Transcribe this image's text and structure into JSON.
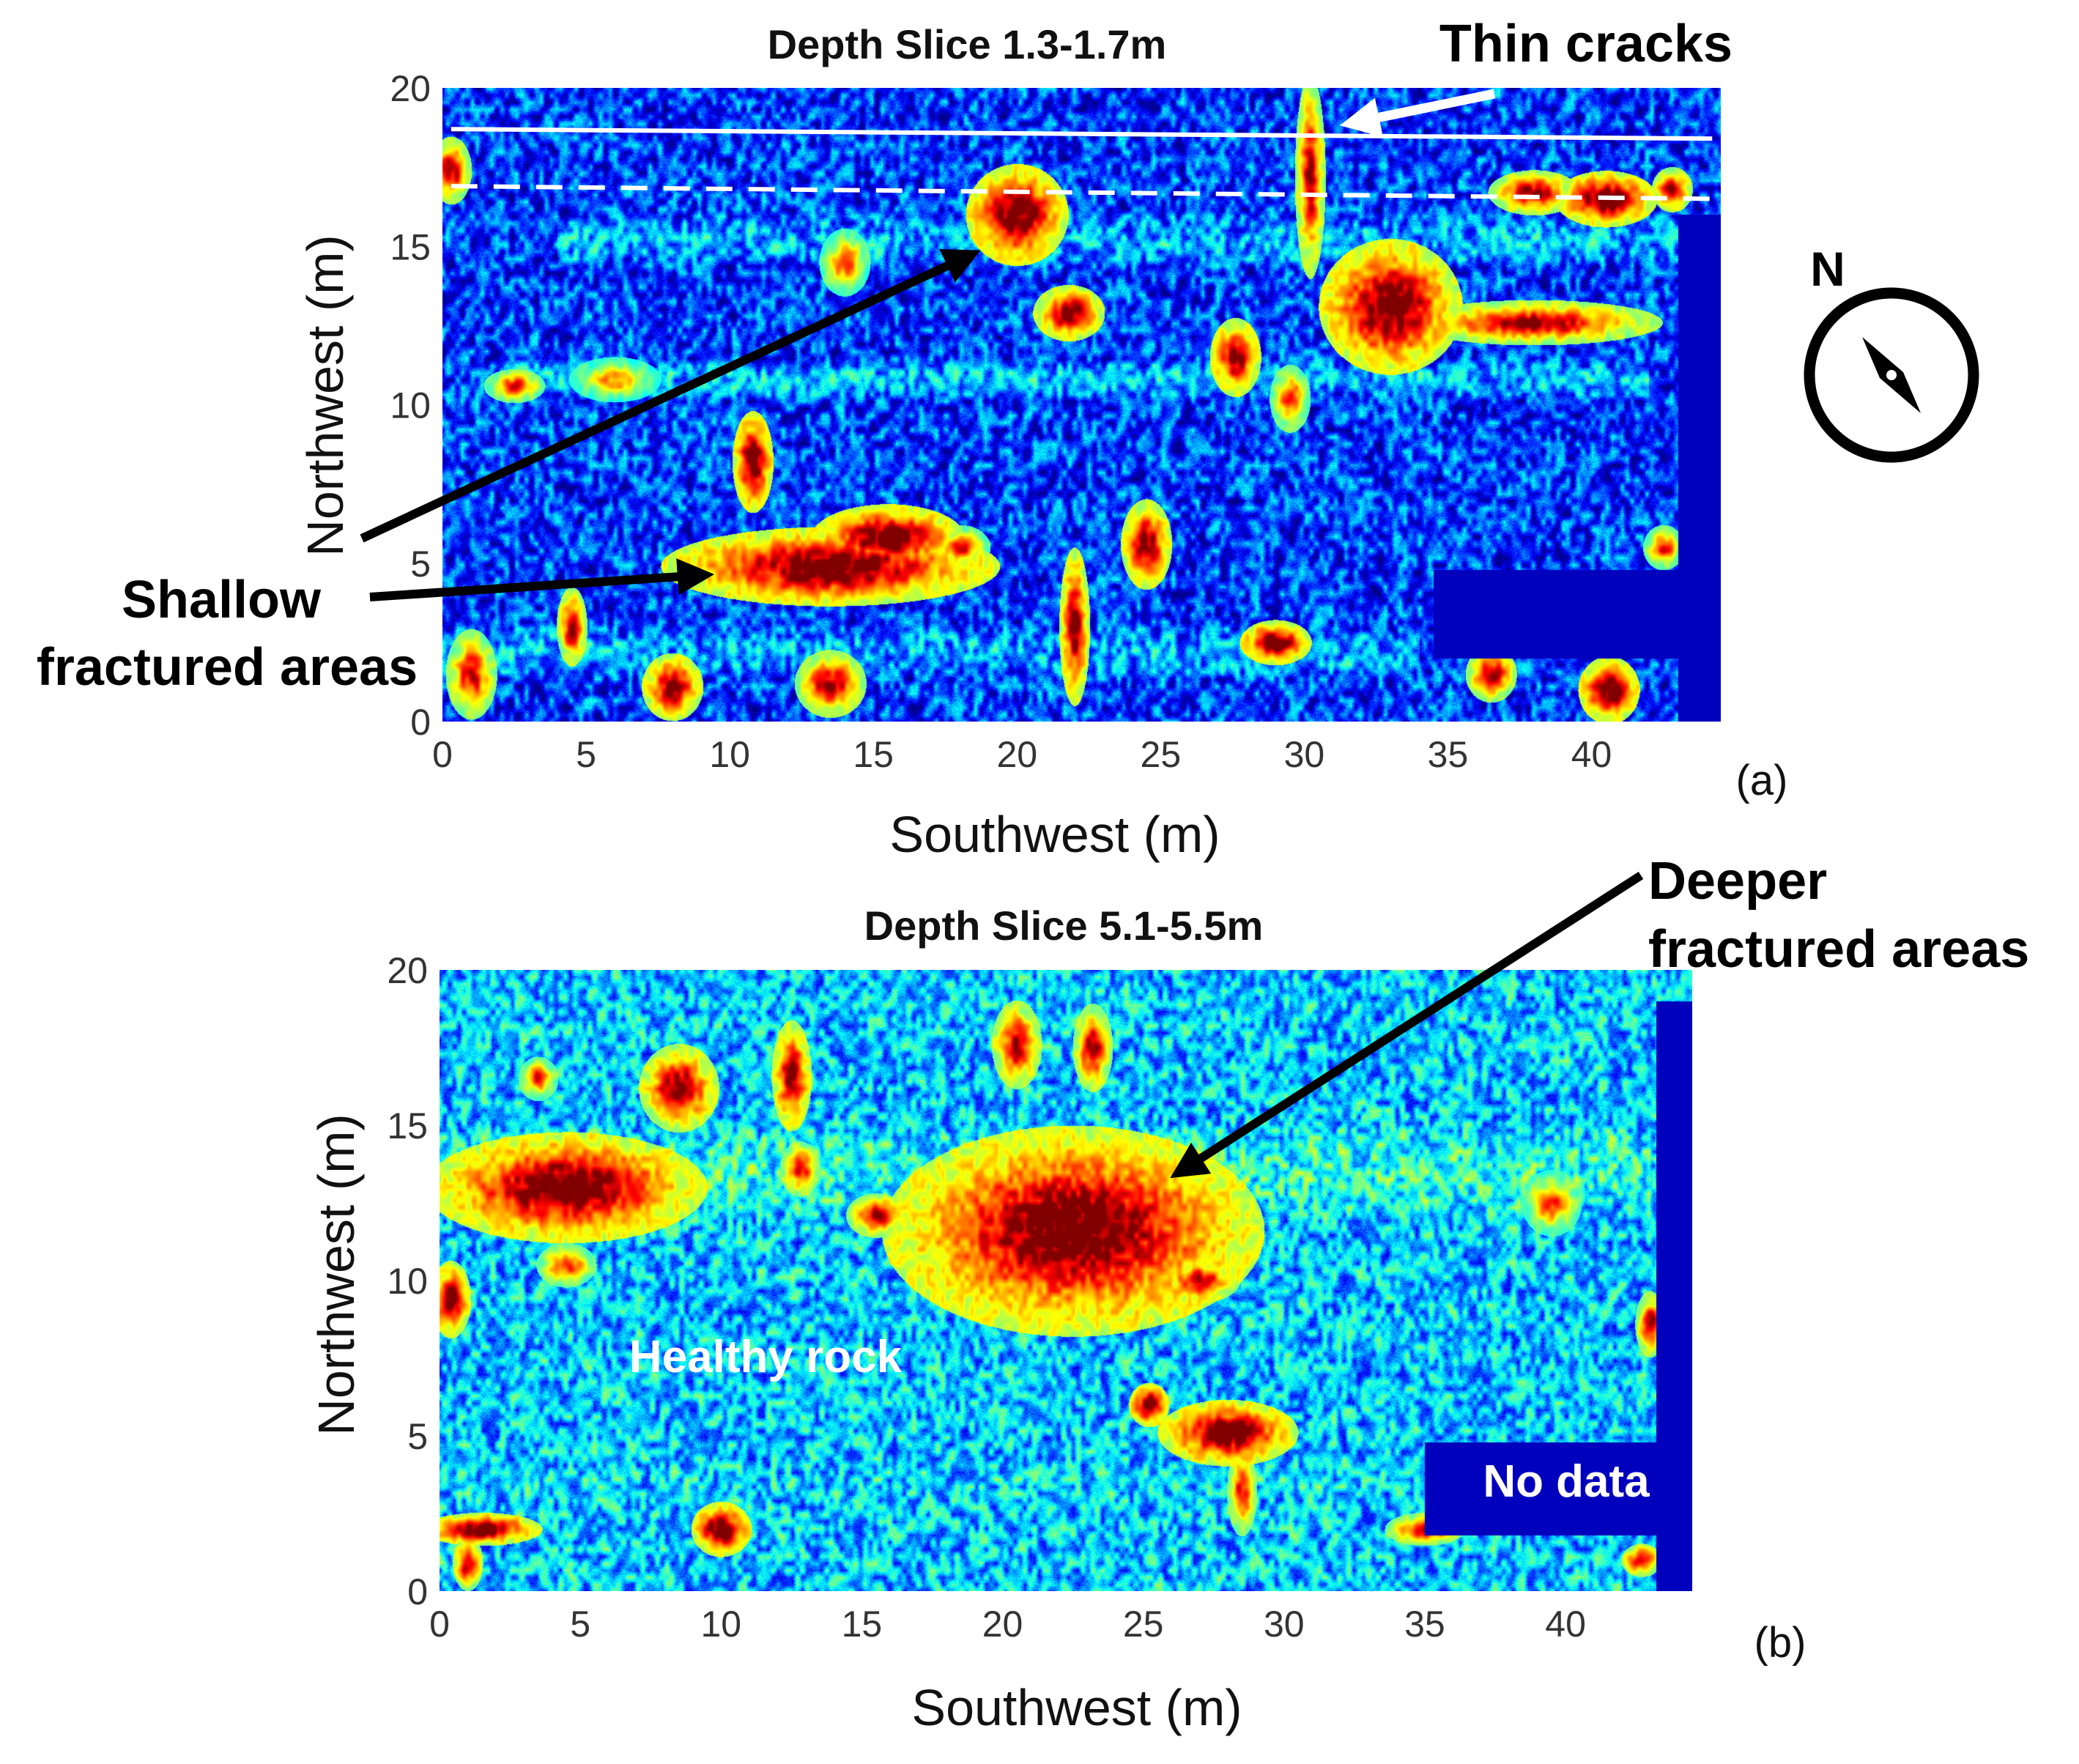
{
  "chart_data": [
    {
      "type": "heatmap",
      "panel_label": "(a)",
      "title": "Depth Slice 1.3-1.7m",
      "xlabel": "Southwest (m)",
      "ylabel": "Northwest (m)",
      "xlim": [
        0,
        44.5
      ],
      "ylim": [
        0,
        20
      ],
      "xticks": [
        "0",
        "5",
        "10",
        "15",
        "20",
        "25",
        "30",
        "35",
        "40"
      ],
      "yticks": [
        "0",
        "5",
        "10",
        "15",
        "20"
      ],
      "colormap": "jet",
      "colors": {
        "low": "#00008f",
        "mid": "#00b4ff",
        "high": "#ffff00",
        "max": "#800000"
      },
      "background_level": 0.18,
      "no_data_regions": [
        {
          "x0": 43.0,
          "x1": 44.5,
          "y0": 0,
          "y1": 16
        },
        {
          "x0": 34.5,
          "x1": 43.0,
          "y0": 2,
          "y1": 4.8
        }
      ],
      "bands": [
        {
          "y_center": 10.8,
          "y_width": 1.8,
          "x_start": 2,
          "x_end": 42,
          "level": 0.32
        },
        {
          "y_center": 15.2,
          "y_width": 2.5,
          "x_start": 4,
          "x_end": 43,
          "level": 0.3
        },
        {
          "y_center": 2.2,
          "y_width": 2.6,
          "x_start": 0,
          "x_end": 34,
          "level": 0.3
        }
      ],
      "hotspots": [
        {
          "x": 13.5,
          "y": 4.9,
          "rx": 3.3,
          "ry": 0.7,
          "value": 1.0
        },
        {
          "x": 15.5,
          "y": 5.8,
          "rx": 1.5,
          "ry": 0.6,
          "value": 1.0
        },
        {
          "x": 20.0,
          "y": 16.0,
          "rx": 1.0,
          "ry": 0.9,
          "value": 1.0
        },
        {
          "x": 33.0,
          "y": 13.1,
          "rx": 1.4,
          "ry": 1.2,
          "value": 1.0
        },
        {
          "x": 10.8,
          "y": 8.2,
          "rx": 0.4,
          "ry": 0.9,
          "value": 1.0
        },
        {
          "x": 21.8,
          "y": 12.9,
          "rx": 0.7,
          "ry": 0.5,
          "value": 0.95
        },
        {
          "x": 24.5,
          "y": 5.6,
          "rx": 0.5,
          "ry": 0.8,
          "value": 0.95
        },
        {
          "x": 22.0,
          "y": 3.0,
          "rx": 0.3,
          "ry": 1.4,
          "value": 0.95
        },
        {
          "x": 30.2,
          "y": 17.2,
          "rx": 0.3,
          "ry": 1.8,
          "value": 0.9
        },
        {
          "x": 40.5,
          "y": 16.5,
          "rx": 1.0,
          "ry": 0.5,
          "value": 1.0
        },
        {
          "x": 38.0,
          "y": 16.7,
          "rx": 0.9,
          "ry": 0.4,
          "value": 0.9
        },
        {
          "x": 38.0,
          "y": 12.6,
          "rx": 2.5,
          "ry": 0.4,
          "value": 0.9
        },
        {
          "x": 40.6,
          "y": 1.0,
          "rx": 0.6,
          "ry": 0.6,
          "value": 1.0
        },
        {
          "x": 36.5,
          "y": 1.5,
          "rx": 0.5,
          "ry": 0.5,
          "value": 0.9
        },
        {
          "x": 29.0,
          "y": 2.5,
          "rx": 0.7,
          "ry": 0.4,
          "value": 1.0
        },
        {
          "x": 27.6,
          "y": 11.5,
          "rx": 0.5,
          "ry": 0.7,
          "value": 0.95
        },
        {
          "x": 4.5,
          "y": 3.0,
          "rx": 0.3,
          "ry": 0.7,
          "value": 0.9
        },
        {
          "x": 8.0,
          "y": 1.1,
          "rx": 0.6,
          "ry": 0.6,
          "value": 0.95
        },
        {
          "x": 13.5,
          "y": 1.2,
          "rx": 0.7,
          "ry": 0.6,
          "value": 0.9
        },
        {
          "x": 6.0,
          "y": 10.8,
          "rx": 0.9,
          "ry": 0.4,
          "value": 0.7
        },
        {
          "x": 2.5,
          "y": 10.6,
          "rx": 0.6,
          "ry": 0.3,
          "value": 0.8
        },
        {
          "x": 29.5,
          "y": 10.2,
          "rx": 0.4,
          "ry": 0.6,
          "value": 0.8
        },
        {
          "x": 42.5,
          "y": 5.5,
          "rx": 0.4,
          "ry": 0.4,
          "value": 0.8
        },
        {
          "x": 1.0,
          "y": 1.5,
          "rx": 0.5,
          "ry": 0.8,
          "value": 0.85
        },
        {
          "x": 18.0,
          "y": 5.5,
          "rx": 0.6,
          "ry": 0.4,
          "value": 0.8
        },
        {
          "x": 42.8,
          "y": 16.8,
          "rx": 0.4,
          "ry": 0.4,
          "value": 0.9
        },
        {
          "x": 0.3,
          "y": 17.4,
          "rx": 0.4,
          "ry": 0.6,
          "value": 0.9
        },
        {
          "x": 14.0,
          "y": 14.5,
          "rx": 0.5,
          "ry": 0.6,
          "value": 0.75
        }
      ],
      "lines": [
        {
          "style": "solid",
          "color": "#ffffff",
          "x": [
            0.3,
            44.2
          ],
          "y": [
            18.7,
            18.4
          ]
        },
        {
          "style": "dashed",
          "color": "#ffffff",
          "x": [
            0.3,
            44.2
          ],
          "y": [
            16.9,
            16.5
          ]
        }
      ],
      "annotations": [
        {
          "text_lines": [
            "Thin cracks"
          ],
          "color": "#000000",
          "arrow_color": "#ffffff",
          "arrow_to": [
            31.0,
            19.1
          ]
        },
        {
          "text_lines": [
            "Shallow",
            "fractured areas"
          ],
          "color": "#000000",
          "arrow_color": "#000000",
          "arrow_to": [
            [
              18.5,
              14.9
            ],
            [
              9.4,
              5.0
            ]
          ]
        }
      ]
    },
    {
      "type": "heatmap",
      "panel_label": "(b)",
      "title": "Depth Slice 5.1-5.5m",
      "xlabel": "Southwest (m)",
      "ylabel": "Northwest (m)",
      "xlim": [
        0,
        44.5
      ],
      "ylim": [
        0,
        20
      ],
      "xticks": [
        "0",
        "5",
        "10",
        "15",
        "20",
        "25",
        "30",
        "35",
        "40"
      ],
      "yticks": [
        "0",
        "5",
        "10",
        "15",
        "20"
      ],
      "colormap": "jet",
      "colors": {
        "low": "#00008f",
        "mid": "#00b4ff",
        "high": "#ffff00",
        "max": "#800000"
      },
      "background_level": 0.32,
      "no_data_regions": [
        {
          "x0": 43.2,
          "x1": 44.5,
          "y0": 0,
          "y1": 19.0
        },
        {
          "x0": 35.0,
          "x1": 43.2,
          "y0": 1.8,
          "y1": 4.8
        }
      ],
      "bands": [
        {
          "y_center": 13.5,
          "y_width": 6.0,
          "x_start": 0,
          "x_end": 43,
          "level": 0.42
        },
        {
          "y_center": 8.0,
          "y_width": 2.5,
          "x_start": 0,
          "x_end": 44,
          "level": 0.08
        },
        {
          "y_center": 3.5,
          "y_width": 4.0,
          "x_start": 0,
          "x_end": 35,
          "level": 0.35
        }
      ],
      "hotspots": [
        {
          "x": 22.5,
          "y": 11.6,
          "rx": 3.8,
          "ry": 1.9,
          "value": 1.0
        },
        {
          "x": 4.5,
          "y": 13.0,
          "rx": 2.8,
          "ry": 1.0,
          "value": 1.0
        },
        {
          "x": 8.5,
          "y": 16.2,
          "rx": 0.8,
          "ry": 0.8,
          "value": 0.95
        },
        {
          "x": 12.5,
          "y": 16.6,
          "rx": 0.4,
          "ry": 1.0,
          "value": 0.95
        },
        {
          "x": 20.5,
          "y": 17.6,
          "rx": 0.5,
          "ry": 0.8,
          "value": 0.9
        },
        {
          "x": 23.2,
          "y": 17.5,
          "rx": 0.4,
          "ry": 0.8,
          "value": 0.9
        },
        {
          "x": 15.5,
          "y": 12.1,
          "rx": 0.6,
          "ry": 0.4,
          "value": 0.9
        },
        {
          "x": 28.0,
          "y": 5.1,
          "rx": 1.4,
          "ry": 0.6,
          "value": 1.0
        },
        {
          "x": 25.2,
          "y": 6.0,
          "rx": 0.4,
          "ry": 0.4,
          "value": 1.0
        },
        {
          "x": 28.5,
          "y": 3.2,
          "rx": 0.3,
          "ry": 0.8,
          "value": 0.85
        },
        {
          "x": 1.5,
          "y": 2.0,
          "rx": 1.2,
          "ry": 0.3,
          "value": 1.0
        },
        {
          "x": 1.0,
          "y": 0.9,
          "rx": 0.3,
          "ry": 0.5,
          "value": 0.9
        },
        {
          "x": 10.0,
          "y": 2.0,
          "rx": 0.6,
          "ry": 0.5,
          "value": 1.0
        },
        {
          "x": 35.0,
          "y": 2.0,
          "rx": 0.8,
          "ry": 0.3,
          "value": 0.85
        },
        {
          "x": 0.4,
          "y": 9.4,
          "rx": 0.4,
          "ry": 0.7,
          "value": 0.95
        },
        {
          "x": 43.0,
          "y": 8.6,
          "rx": 0.3,
          "ry": 0.6,
          "value": 0.9
        },
        {
          "x": 42.7,
          "y": 1.0,
          "rx": 0.4,
          "ry": 0.3,
          "value": 0.9
        },
        {
          "x": 12.8,
          "y": 13.6,
          "rx": 0.4,
          "ry": 0.5,
          "value": 0.85
        },
        {
          "x": 3.5,
          "y": 16.5,
          "rx": 0.4,
          "ry": 0.4,
          "value": 0.8
        },
        {
          "x": 39.5,
          "y": 12.5,
          "rx": 0.6,
          "ry": 0.6,
          "value": 0.75
        },
        {
          "x": 4.5,
          "y": 10.5,
          "rx": 0.6,
          "ry": 0.4,
          "value": 0.8
        },
        {
          "x": 27.0,
          "y": 10.0,
          "rx": 0.8,
          "ry": 0.4,
          "value": 0.9
        }
      ],
      "lines": [],
      "annotations": [
        {
          "text_lines": [
            "Deeper",
            "fractured areas"
          ],
          "color": "#000000",
          "arrow_color": "#000000",
          "arrow_to": [
            25.6,
            13.8
          ]
        },
        {
          "text_lines": [
            "Healthy rock"
          ],
          "color": "#ffffff"
        },
        {
          "text_lines": [
            "No data"
          ],
          "color": "#ffffff"
        }
      ]
    }
  ],
  "compass": {
    "label": "N",
    "icon": "compass-icon"
  }
}
